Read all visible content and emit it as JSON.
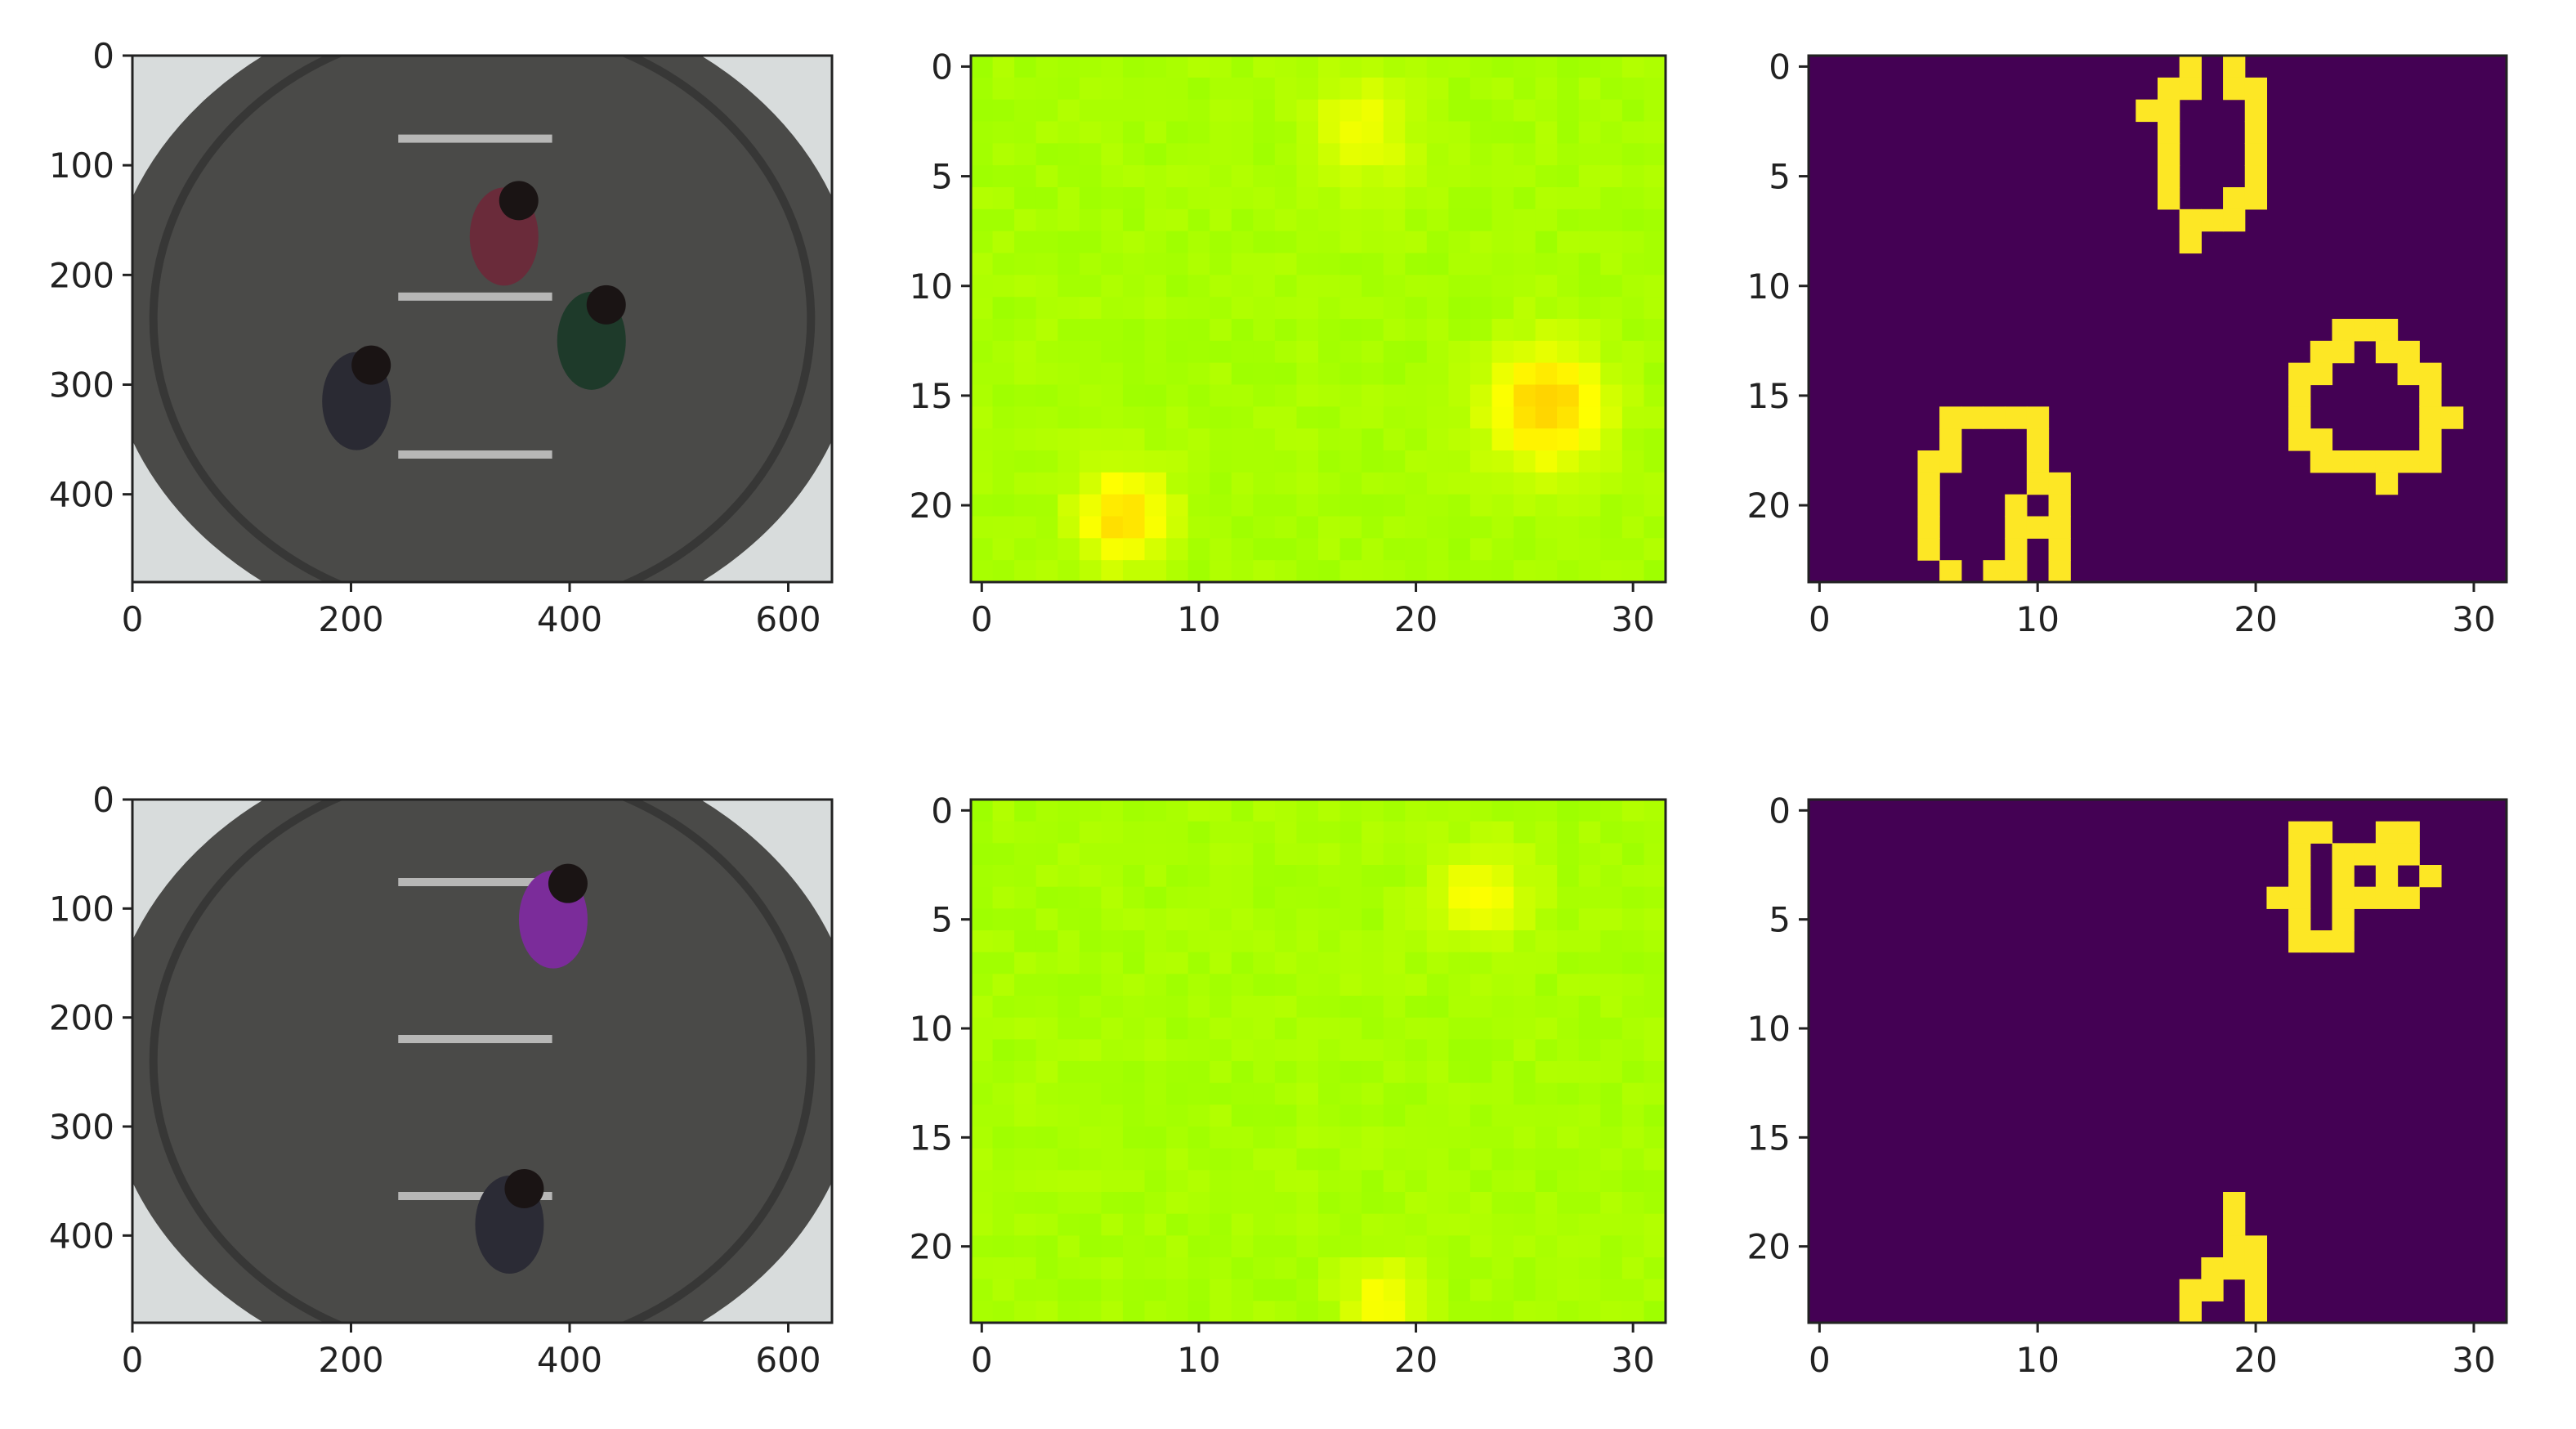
{
  "chart_data": [
    {
      "panel": "top-left",
      "type": "heatmap",
      "kind": "photo",
      "photo_description": "Top-down fisheye camera view of a corridor with three people walking",
      "xlim": [
        0,
        640
      ],
      "ylim": [
        480,
        0
      ],
      "xticks": [
        0,
        200,
        400,
        600
      ],
      "yticks": [
        0,
        100,
        200,
        300,
        400
      ],
      "people": [
        [
          340,
          165
        ],
        [
          205,
          315
        ],
        [
          420,
          260
        ]
      ],
      "people_colors": [
        "#6a2b3a",
        "#2a2a33",
        "#1e3a2a"
      ]
    },
    {
      "panel": "top-middle",
      "type": "heatmap",
      "kind": "heat",
      "title": "",
      "xlabel": "",
      "ylabel": "",
      "grid_size": [
        32,
        24
      ],
      "xlim": [
        -0.5,
        31.5
      ],
      "ylim": [
        23.5,
        -0.5
      ],
      "xticks": [
        0,
        10,
        20,
        30
      ],
      "yticks": [
        0,
        5,
        10,
        15,
        20
      ],
      "background_level": 0.3,
      "hotspots": [
        {
          "x": 17.5,
          "y": 3.0,
          "peak": 0.48,
          "spread": 1.6
        },
        {
          "x": 26.0,
          "y": 15.5,
          "peak": 0.66,
          "spread": 1.9
        },
        {
          "x": 6.5,
          "y": 20.5,
          "peak": 0.62,
          "spread": 1.5
        }
      ]
    },
    {
      "panel": "top-right",
      "type": "heatmap",
      "kind": "binary",
      "grid_size": [
        32,
        24
      ],
      "xlim": [
        -0.5,
        31.5
      ],
      "ylim": [
        23.5,
        -0.5
      ],
      "xticks": [
        0,
        10,
        20,
        30
      ],
      "yticks": [
        0,
        5,
        10,
        15,
        20
      ],
      "colors": {
        "off": "#440154",
        "on": "#fde725"
      },
      "on_cells": [
        [
          17,
          0
        ],
        [
          19,
          0
        ],
        [
          16,
          1
        ],
        [
          17,
          1
        ],
        [
          19,
          1
        ],
        [
          20,
          1
        ],
        [
          15,
          2
        ],
        [
          16,
          2
        ],
        [
          20,
          2
        ],
        [
          16,
          3
        ],
        [
          20,
          3
        ],
        [
          16,
          4
        ],
        [
          20,
          4
        ],
        [
          16,
          5
        ],
        [
          20,
          5
        ],
        [
          16,
          6
        ],
        [
          19,
          6
        ],
        [
          20,
          6
        ],
        [
          17,
          7
        ],
        [
          18,
          7
        ],
        [
          19,
          7
        ],
        [
          17,
          8
        ],
        [
          24,
          12
        ],
        [
          25,
          12
        ],
        [
          26,
          12
        ],
        [
          23,
          13
        ],
        [
          24,
          13
        ],
        [
          26,
          13
        ],
        [
          27,
          13
        ],
        [
          22,
          14
        ],
        [
          23,
          14
        ],
        [
          27,
          14
        ],
        [
          28,
          14
        ],
        [
          22,
          15
        ],
        [
          28,
          15
        ],
        [
          22,
          16
        ],
        [
          28,
          16
        ],
        [
          29,
          16
        ],
        [
          22,
          17
        ],
        [
          23,
          17
        ],
        [
          28,
          17
        ],
        [
          23,
          18
        ],
        [
          24,
          18
        ],
        [
          25,
          18
        ],
        [
          26,
          18
        ],
        [
          27,
          18
        ],
        [
          28,
          18
        ],
        [
          26,
          19
        ],
        [
          6,
          16
        ],
        [
          7,
          16
        ],
        [
          8,
          16
        ],
        [
          9,
          16
        ],
        [
          10,
          16
        ],
        [
          6,
          17
        ],
        [
          10,
          17
        ],
        [
          5,
          18
        ],
        [
          6,
          18
        ],
        [
          10,
          18
        ],
        [
          5,
          19
        ],
        [
          10,
          19
        ],
        [
          11,
          19
        ],
        [
          5,
          20
        ],
        [
          9,
          20
        ],
        [
          11,
          20
        ],
        [
          5,
          21
        ],
        [
          9,
          21
        ],
        [
          10,
          21
        ],
        [
          11,
          21
        ],
        [
          5,
          22
        ],
        [
          9,
          22
        ],
        [
          11,
          22
        ],
        [
          6,
          23
        ],
        [
          8,
          23
        ],
        [
          9,
          23
        ],
        [
          11,
          23
        ]
      ]
    },
    {
      "panel": "bottom-left",
      "type": "heatmap",
      "kind": "photo",
      "photo_description": "Top-down fisheye camera view of an office floor with two people walking",
      "xlim": [
        0,
        640
      ],
      "ylim": [
        480,
        0
      ],
      "xticks": [
        0,
        200,
        400,
        600
      ],
      "yticks": [
        0,
        100,
        200,
        300,
        400
      ],
      "people": [
        [
          385,
          110
        ],
        [
          345,
          390
        ]
      ],
      "people_colors": [
        "#7b2c9a",
        "#2b2b35"
      ]
    },
    {
      "panel": "bottom-middle",
      "type": "heatmap",
      "kind": "heat",
      "title": "",
      "xlabel": "",
      "ylabel": "",
      "grid_size": [
        32,
        24
      ],
      "xlim": [
        -0.5,
        31.5
      ],
      "ylim": [
        23.5,
        -0.5
      ],
      "xticks": [
        0,
        10,
        20,
        30
      ],
      "yticks": [
        0,
        5,
        10,
        15,
        20
      ],
      "background_level": 0.3,
      "hotspots": [
        {
          "x": 23.0,
          "y": 3.8,
          "peak": 0.5,
          "spread": 1.5
        },
        {
          "x": 18.5,
          "y": 22.5,
          "peak": 0.5,
          "spread": 1.3
        }
      ]
    },
    {
      "panel": "bottom-right",
      "type": "heatmap",
      "kind": "binary",
      "grid_size": [
        32,
        24
      ],
      "xlim": [
        -0.5,
        31.5
      ],
      "ylim": [
        23.5,
        -0.5
      ],
      "xticks": [
        0,
        10,
        20,
        30
      ],
      "yticks": [
        0,
        5,
        10,
        15,
        20
      ],
      "colors": {
        "off": "#440154",
        "on": "#fde725"
      },
      "on_cells": [
        [
          22,
          1
        ],
        [
          23,
          1
        ],
        [
          26,
          1
        ],
        [
          27,
          1
        ],
        [
          22,
          2
        ],
        [
          24,
          2
        ],
        [
          25,
          2
        ],
        [
          26,
          2
        ],
        [
          27,
          2
        ],
        [
          22,
          3
        ],
        [
          24,
          3
        ],
        [
          26,
          3
        ],
        [
          28,
          3
        ],
        [
          21,
          4
        ],
        [
          22,
          4
        ],
        [
          24,
          4
        ],
        [
          25,
          4
        ],
        [
          26,
          4
        ],
        [
          27,
          4
        ],
        [
          22,
          5
        ],
        [
          24,
          5
        ],
        [
          22,
          6
        ],
        [
          23,
          6
        ],
        [
          24,
          6
        ],
        [
          19,
          18
        ],
        [
          19,
          19
        ],
        [
          19,
          20
        ],
        [
          20,
          20
        ],
        [
          18,
          21
        ],
        [
          19,
          21
        ],
        [
          20,
          21
        ],
        [
          17,
          22
        ],
        [
          18,
          22
        ],
        [
          20,
          22
        ],
        [
          17,
          23
        ],
        [
          20,
          23
        ]
      ]
    }
  ]
}
